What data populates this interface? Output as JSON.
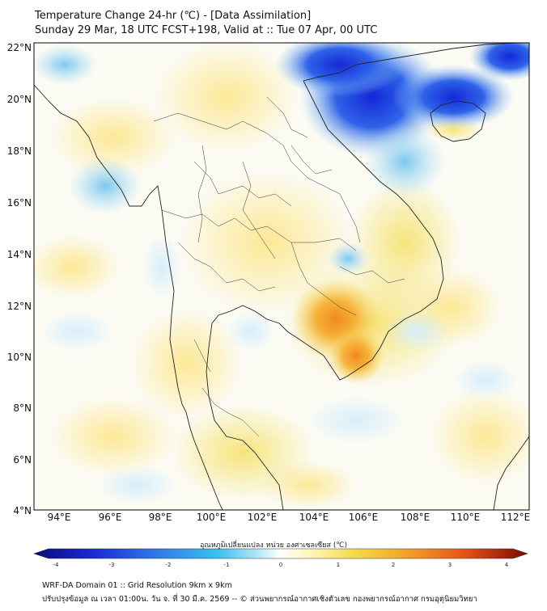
{
  "title": {
    "line1": "Temperature Change 24-hr (℃) - [Data Assimilation]",
    "line2": "Sunday 29 Mar, 18 UTC FCST+198, Valid at :: Tue 07 Apr, 00 UTC"
  },
  "map": {
    "lat_labels": [
      "22°N",
      "20°N",
      "18°N",
      "16°N",
      "14°N",
      "12°N",
      "10°N",
      "8°N",
      "6°N",
      "4°N"
    ],
    "lon_labels": [
      "94°E",
      "96°E",
      "98°E",
      "100°E",
      "102°E",
      "104°E",
      "106°E",
      "108°E",
      "110°E",
      "112°E"
    ]
  },
  "colorbar": {
    "label": "อุณหภูมิเปลี่ยนแปลง หน่วย องศาเซลเซียส (℃)",
    "ticks": [
      "-4",
      "-3",
      "-2",
      "-1",
      "0",
      "1",
      "2",
      "3",
      "4"
    ]
  },
  "footer": {
    "line1": "WRF-DA Domain 01 :: Grid Resolution 9km x 9km",
    "line2": "ปรับปรุงข้อมูล ณ เวลา 01:00น. วัน จ. ที่ 30 มี.ค. 2569 -- © ส่วนพยากรณ์อากาศเชิงตัวเลข กองพยากรณ์อากาศ กรมอุตุนิยมวิทยา"
  }
}
